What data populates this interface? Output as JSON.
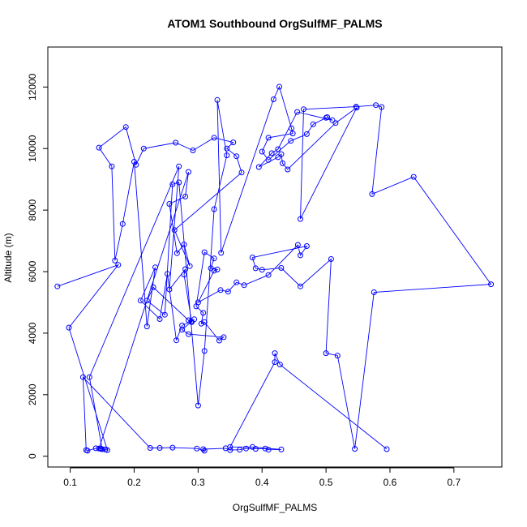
{
  "chart_data": {
    "type": "line",
    "title": "ATOM1 Southbound OrgSulfMF_PALMS",
    "xlabel": "OrgSulfMF_PALMS",
    "ylabel": "Altitude (m)",
    "xlim": [
      0.065,
      0.775
    ],
    "ylim": [
      -350,
      13300
    ],
    "x_ticks": [
      0.1,
      0.2,
      0.3,
      0.4,
      0.5,
      0.6,
      0.7
    ],
    "x_tick_labels": [
      "0.1",
      "0.2",
      "0.3",
      "0.4",
      "0.5",
      "0.6",
      "0.7"
    ],
    "y_ticks": [
      0,
      2000,
      4000,
      6000,
      8000,
      10000,
      12000
    ],
    "y_tick_labels": [
      "0",
      "2000",
      "4000",
      "6000",
      "8000",
      "10000",
      "12000"
    ],
    "grid": false,
    "color": "#0000ff",
    "series": [
      {
        "markers": "open-circle",
        "x": [
          0.08,
          0.175,
          0.098,
          0.158,
          0.15,
          0.13,
          0.27,
          0.255,
          0.28,
          0.278,
          0.29,
          0.285,
          0.23,
          0.22,
          0.248,
          0.26,
          0.27,
          0.3,
          0.31,
          0.325,
          0.345,
          0.33,
          0.336,
          0.418,
          0.427,
          0.446,
          0.448,
          0.41,
          0.4,
          0.41,
          0.445,
          0.47,
          0.48,
          0.5,
          0.502,
          0.51,
          0.455,
          0.425,
          0.415,
          0.395,
          0.425,
          0.43,
          0.432,
          0.44,
          0.515,
          0.548,
          0.46,
          0.465,
          0.547,
          0.578,
          0.587,
          0.572,
          0.637,
          0.758,
          0.575,
          0.545,
          0.518,
          0.5,
          0.508,
          0.46,
          0.43,
          0.4,
          0.39,
          0.385,
          0.47,
          0.46,
          0.456,
          0.41,
          0.372,
          0.36,
          0.347,
          0.335,
          0.3,
          0.325,
          0.33,
          0.32,
          0.325,
          0.31,
          0.297,
          0.308,
          0.305,
          0.31,
          0.333,
          0.34,
          0.285,
          0.275,
          0.294,
          0.289,
          0.275,
          0.266,
          0.252,
          0.24,
          0.21,
          0.233,
          0.22,
          0.2,
          0.182,
          0.17,
          0.165,
          0.145,
          0.187,
          0.203,
          0.215,
          0.265,
          0.292,
          0.325,
          0.355,
          0.345,
          0.36,
          0.368,
          0.263,
          0.287,
          0.278,
          0.267,
          0.255,
          0.28,
          0.285,
          0.145,
          0.155,
          0.148,
          0.147,
          0.14,
          0.127,
          0.125,
          0.12,
          0.225,
          0.24,
          0.26,
          0.298,
          0.31,
          0.308,
          0.343,
          0.35,
          0.365,
          0.375,
          0.39,
          0.405,
          0.41,
          0.43,
          0.385,
          0.35,
          0.42,
          0.42,
          0.428,
          0.595
        ],
        "y": [
          5520,
          6220,
          4180,
          200,
          230,
          2570,
          9420,
          5420,
          6080,
          5900,
          4360,
          4420,
          5490,
          5060,
          4600,
          8840,
          8900,
          1650,
          3420,
          8030,
          9780,
          11580,
          6610,
          11600,
          12010,
          10660,
          10490,
          10350,
          9900,
          9630,
          10250,
          10470,
          10790,
          11000,
          11020,
          10920,
          11190,
          9980,
          9850,
          9400,
          9720,
          9820,
          9520,
          9320,
          10830,
          11330,
          7710,
          11280,
          11360,
          11410,
          11350,
          8520,
          9080,
          5590,
          5330,
          240,
          3270,
          3350,
          6410,
          5520,
          6120,
          6060,
          6110,
          6460,
          6830,
          6530,
          6870,
          5890,
          5560,
          5650,
          5350,
          5400,
          5000,
          6030,
          6070,
          6110,
          6430,
          6630,
          4870,
          4660,
          4310,
          4360,
          3760,
          3870,
          3970,
          4110,
          4450,
          4380,
          4250,
          3770,
          5930,
          4460,
          5060,
          6140,
          4220,
          9570,
          7550,
          6360,
          9420,
          10030,
          10700,
          9470,
          10000,
          10190,
          9940,
          10350,
          10200,
          10000,
          9750,
          9220,
          7350,
          6180,
          6880,
          6600,
          8200,
          8440,
          9240,
          250,
          220,
          240,
          250,
          260,
          180,
          200,
          2570,
          270,
          270,
          280,
          250,
          180,
          230,
          260,
          200,
          210,
          250,
          240,
          250,
          210,
          220,
          300,
          300,
          3060,
          3350,
          2980,
          230
        ]
      }
    ]
  }
}
